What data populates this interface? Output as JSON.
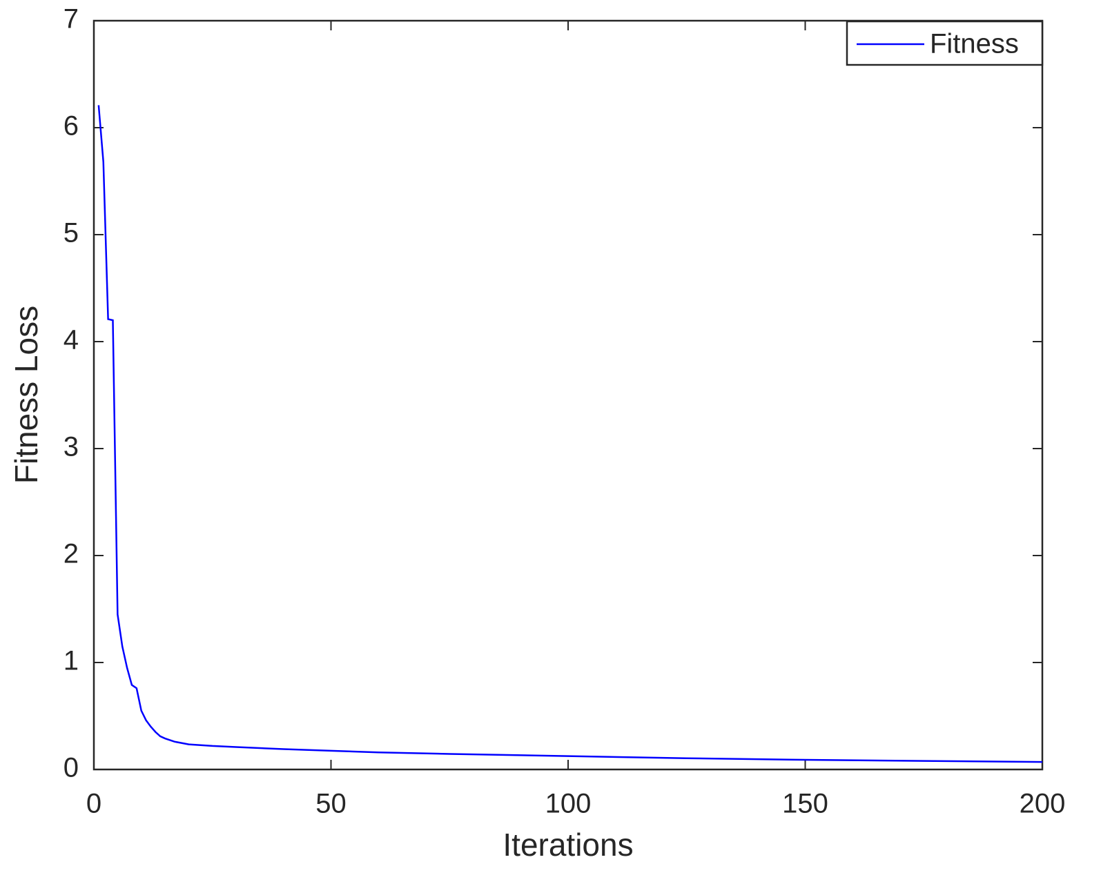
{
  "chart_data": {
    "type": "line",
    "x_label": "Iterations",
    "y_label": "Fitness Loss",
    "series": [
      {
        "name": "Fitness",
        "color": "#0000ff",
        "x": [
          1,
          2,
          3,
          4,
          5,
          6,
          7,
          8,
          9,
          10,
          11,
          12,
          13,
          14,
          15,
          17,
          20,
          25,
          30,
          40,
          50,
          60,
          75,
          100,
          125,
          150,
          175,
          200
        ],
        "values": [
          6.21,
          5.68,
          4.21,
          4.2,
          1.45,
          1.15,
          0.95,
          0.79,
          0.76,
          0.55,
          0.46,
          0.4,
          0.35,
          0.31,
          0.29,
          0.26,
          0.235,
          0.22,
          0.21,
          0.19,
          0.175,
          0.16,
          0.145,
          0.125,
          0.105,
          0.09,
          0.08,
          0.07
        ]
      }
    ],
    "xlim": [
      0,
      200
    ],
    "xticks": [
      0,
      50,
      100,
      150,
      200
    ],
    "ylim": [
      0,
      7
    ],
    "yticks": [
      0,
      1,
      2,
      3,
      4,
      5,
      6,
      7
    ],
    "legend": "upper-right",
    "grid": false
  }
}
